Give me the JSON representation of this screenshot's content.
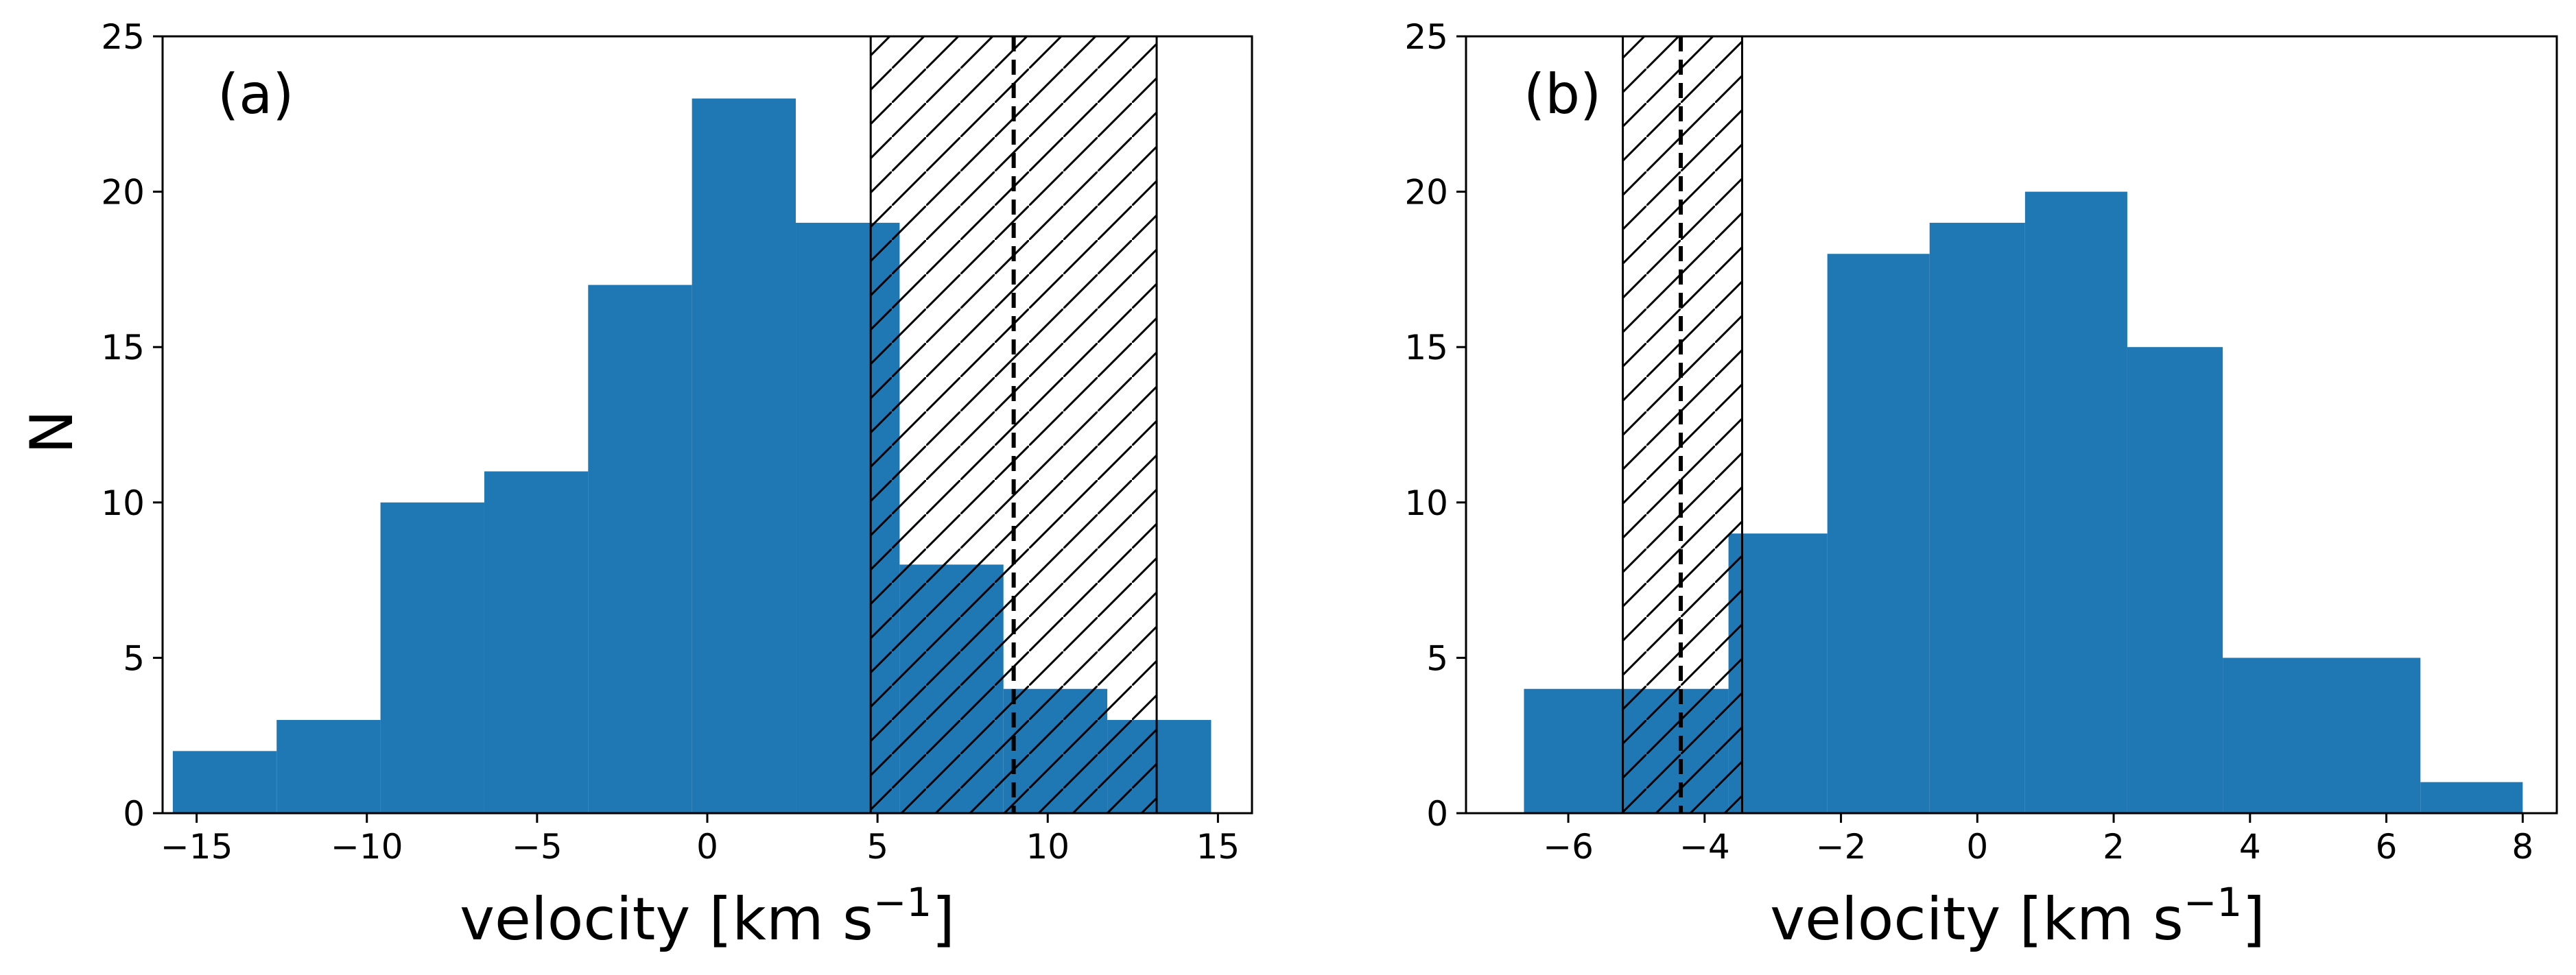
{
  "chart_data": [
    {
      "type": "histogram",
      "panel_label": "(a)",
      "xlabel": "velocity [km s",
      "xlabel_sup": "−1",
      "xlabel_end": "]",
      "ylabel": "N",
      "xlim": [
        -16,
        16
      ],
      "ylim": [
        0,
        25
      ],
      "xticks": [
        -15,
        -10,
        -5,
        0,
        5,
        10,
        15
      ],
      "xtick_labels": [
        "−15",
        "−10",
        "−5",
        "0",
        "5",
        "10",
        "15"
      ],
      "yticks": [
        0,
        5,
        10,
        15,
        20,
        25
      ],
      "ytick_labels": [
        "0",
        "5",
        "10",
        "15",
        "20",
        "25"
      ],
      "bins": [
        {
          "x0": -15.7,
          "x1": -12.65,
          "count": 2
        },
        {
          "x0": -12.65,
          "x1": -9.6,
          "count": 3
        },
        {
          "x0": -9.6,
          "x1": -6.55,
          "count": 10
        },
        {
          "x0": -6.55,
          "x1": -3.5,
          "count": 11
        },
        {
          "x0": -3.5,
          "x1": -0.45,
          "count": 17
        },
        {
          "x0": -0.45,
          "x1": 2.6,
          "count": 23
        },
        {
          "x0": 2.6,
          "x1": 5.65,
          "count": 19
        },
        {
          "x0": 5.65,
          "x1": 8.7,
          "count": 8
        },
        {
          "x0": 8.7,
          "x1": 11.75,
          "count": 4
        },
        {
          "x0": 11.75,
          "x1": 14.8,
          "count": 3
        }
      ],
      "hatched_band": {
        "x0": 4.8,
        "x1": 13.2
      },
      "dashed_line_x": 9.0,
      "bar_color": "#1f77b4"
    },
    {
      "type": "histogram",
      "panel_label": "(b)",
      "xlabel": "velocity [km s",
      "xlabel_sup": "−1",
      "xlabel_end": "]",
      "ylabel": "",
      "xlim": [
        -7.5,
        8.5
      ],
      "ylim": [
        0,
        25
      ],
      "xticks": [
        -6,
        -4,
        -2,
        0,
        2,
        4,
        6,
        8
      ],
      "xtick_labels": [
        "−6",
        "−4",
        "−2",
        "0",
        "2",
        "4",
        "6",
        "8"
      ],
      "yticks": [
        0,
        5,
        10,
        15,
        20,
        25
      ],
      "ytick_labels": [
        "0",
        "5",
        "10",
        "15",
        "20",
        "25"
      ],
      "bins": [
        {
          "x0": -6.65,
          "x1": -3.65,
          "count": 4
        },
        {
          "x0": -3.65,
          "x1": -2.2,
          "count": 9
        },
        {
          "x0": -2.2,
          "x1": -0.7,
          "count": 18
        },
        {
          "x0": -0.7,
          "x1": 0.7,
          "count": 19
        },
        {
          "x0": 0.7,
          "x1": 2.2,
          "count": 20
        },
        {
          "x0": 2.2,
          "x1": 3.6,
          "count": 15
        },
        {
          "x0": 3.6,
          "x1": 6.5,
          "count": 5
        },
        {
          "x0": 6.5,
          "x1": 8.0,
          "count": 1
        }
      ],
      "hatched_band": {
        "x0": -5.2,
        "x1": -3.45
      },
      "dashed_line_x": -4.35,
      "bar_color": "#1f77b4"
    }
  ]
}
